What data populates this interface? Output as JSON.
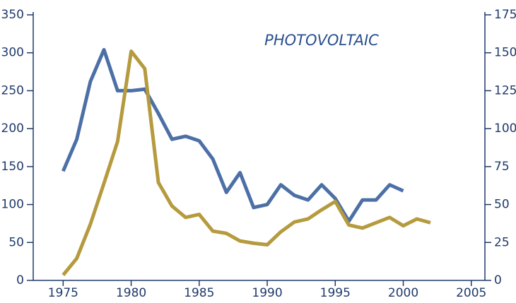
{
  "chart_data": {
    "type": "line",
    "title": "PHOTOVOLTAIC",
    "x": [
      1975,
      1976,
      1977,
      1978,
      1979,
      1980,
      1981,
      1982,
      1983,
      1984,
      1985,
      1986,
      1987,
      1988,
      1989,
      1990,
      1991,
      1992,
      1993,
      1994,
      1995,
      1996,
      1997,
      1998,
      1999,
      2000,
      2001,
      2002
    ],
    "series": [
      {
        "color": "#4c70a6",
        "axis": "y2",
        "values": [
          72,
          93,
          131,
          152,
          125,
          125,
          126,
          110,
          93,
          95,
          92,
          80,
          58,
          71,
          48,
          50,
          63,
          56,
          53,
          63,
          54,
          39,
          53,
          53,
          63,
          59,
          null,
          null
        ]
      },
      {
        "color": "#b59a3e",
        "values": [
          7,
          29,
          74,
          128,
          183,
          302,
          279,
          129,
          98,
          83,
          87,
          65,
          62,
          52,
          49,
          47,
          64,
          77,
          81,
          93,
          104,
          73,
          69,
          76,
          83,
          72,
          81,
          76
        ]
      }
    ],
    "xlim": [
      1972.8,
      2006
    ],
    "xticks": [
      1975,
      1980,
      1985,
      1990,
      1995,
      2000,
      2005
    ],
    "ylim": [
      0,
      350
    ],
    "yticks": [
      0,
      50,
      100,
      150,
      200,
      250,
      300,
      350
    ],
    "y2lim": [
      0,
      175
    ],
    "y2ticks": [
      0,
      25,
      50,
      75,
      100,
      125,
      150,
      175
    ]
  }
}
